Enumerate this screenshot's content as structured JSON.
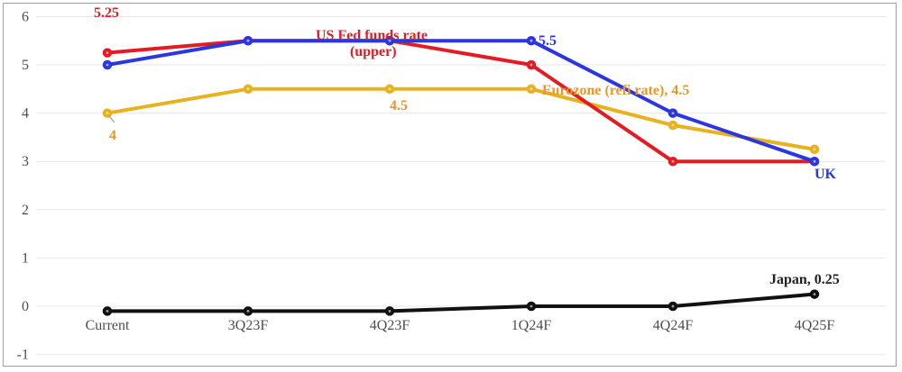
{
  "chart_data": {
    "type": "line",
    "title": "",
    "xlabel": "",
    "ylabel": "",
    "ylim": [
      -1,
      6
    ],
    "yticks": [
      6,
      5,
      4,
      3,
      2,
      1,
      0,
      -1
    ],
    "grid": true,
    "legend": "inline labels",
    "categories": [
      "Current",
      "3Q23F",
      "4Q23F",
      "1Q24F",
      "4Q24F",
      "4Q25F"
    ],
    "series": [
      {
        "name": "US Fed funds rate (upper)",
        "color": "#e31b23",
        "values": [
          5.25,
          5.5,
          5.5,
          5.0,
          3.0,
          3.0
        ]
      },
      {
        "name": "UK",
        "color": "#2b35e0",
        "values": [
          5.0,
          5.5,
          5.5,
          5.5,
          4.0,
          3.0
        ]
      },
      {
        "name": "Eurozone (refi rate)",
        "color": "#e8b21e",
        "values": [
          4.0,
          4.5,
          4.5,
          4.5,
          3.75,
          3.25
        ]
      },
      {
        "name": "Japan",
        "color": "#111111",
        "values": [
          -0.1,
          -0.1,
          -0.1,
          0.0,
          0.0,
          0.25
        ]
      }
    ],
    "annotations": [
      {
        "text": "5.25",
        "color": "#e31b23"
      },
      {
        "text": "US Fed funds rate",
        "color": "#e31b23"
      },
      {
        "text": "(upper)",
        "color": "#e31b23"
      },
      {
        "text": "5.5",
        "color": "#2b35e0"
      },
      {
        "text": "UK",
        "color": "#2b35e0"
      },
      {
        "text": "Eurozone (refi rate), 4.5",
        "color": "#e8962a"
      },
      {
        "text": "4.5",
        "color": "#e8962a"
      },
      {
        "text": "4",
        "color": "#e8962a"
      },
      {
        "text": "Japan, 0.25",
        "color": "#222222"
      }
    ]
  }
}
